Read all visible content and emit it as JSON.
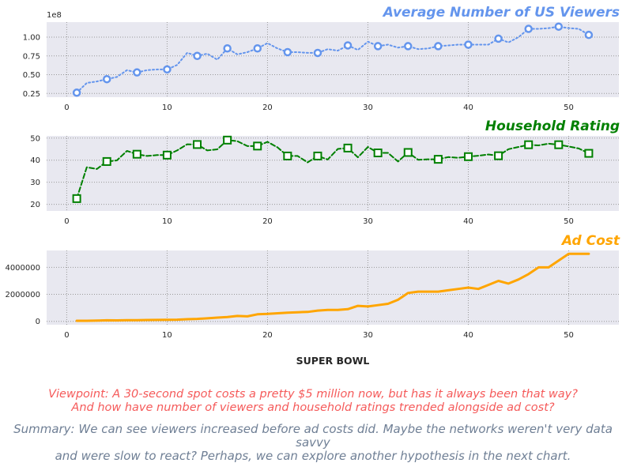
{
  "chart_data": [
    {
      "type": "line",
      "title": "Average Number of US Viewers",
      "color": "#6495ed",
      "linestyle": "dotted",
      "marker": "circle",
      "offset_label": "1e8",
      "x": [
        1,
        2,
        3,
        4,
        5,
        6,
        7,
        8,
        9,
        10,
        11,
        12,
        13,
        14,
        15,
        16,
        17,
        18,
        19,
        20,
        21,
        22,
        23,
        24,
        25,
        26,
        27,
        28,
        29,
        30,
        31,
        32,
        33,
        34,
        35,
        36,
        37,
        38,
        39,
        40,
        41,
        42,
        43,
        44,
        45,
        46,
        47,
        48,
        49,
        50,
        51,
        52
      ],
      "values": [
        0.26,
        0.39,
        0.41,
        0.44,
        0.47,
        0.56,
        0.53,
        0.56,
        0.57,
        0.57,
        0.63,
        0.79,
        0.75,
        0.78,
        0.7,
        0.85,
        0.77,
        0.8,
        0.85,
        0.92,
        0.85,
        0.8,
        0.8,
        0.79,
        0.79,
        0.84,
        0.82,
        0.89,
        0.83,
        0.94,
        0.88,
        0.9,
        0.86,
        0.88,
        0.84,
        0.85,
        0.88,
        0.89,
        0.9,
        0.9,
        0.9,
        0.9,
        0.98,
        0.93,
        1.0,
        1.11,
        1.11,
        1.12,
        1.14,
        1.12,
        1.11,
        1.03
      ],
      "marked_x": [
        1,
        4,
        7,
        10,
        13,
        16,
        19,
        22,
        25,
        28,
        31,
        34,
        37,
        40,
        43,
        46,
        49,
        52
      ],
      "xlim": [
        -2,
        55
      ],
      "ylim": [
        0.2,
        1.2
      ],
      "xticks": [
        0,
        10,
        20,
        30,
        40,
        50
      ],
      "yticks": [
        0.25,
        0.5,
        0.75,
        1.0
      ],
      "ytick_labels": [
        "0.25",
        "0.50",
        "0.75",
        "1.00"
      ]
    },
    {
      "type": "line",
      "title": "Household Rating",
      "color": "#008000",
      "linestyle": "dashed",
      "marker": "square",
      "x": [
        1,
        2,
        3,
        4,
        5,
        6,
        7,
        8,
        9,
        10,
        11,
        12,
        13,
        14,
        15,
        16,
        17,
        18,
        19,
        20,
        21,
        22,
        23,
        24,
        25,
        26,
        27,
        28,
        29,
        30,
        31,
        32,
        33,
        34,
        35,
        36,
        37,
        38,
        39,
        40,
        41,
        42,
        43,
        44,
        45,
        46,
        47,
        48,
        49,
        50,
        51,
        52
      ],
      "values": [
        22.6,
        36.8,
        36.0,
        39.4,
        39.9,
        44.2,
        42.7,
        41.9,
        42.3,
        42.3,
        44.4,
        47.2,
        47.1,
        44.4,
        44.9,
        49.1,
        48.6,
        46.4,
        46.4,
        48.3,
        45.8,
        41.9,
        41.9,
        39.0,
        41.9,
        40.3,
        45.1,
        45.5,
        41.3,
        46.0,
        43.3,
        43.3,
        39.4,
        43.5,
        40.2,
        40.4,
        40.4,
        41.4,
        41.1,
        41.6,
        42.0,
        42.6,
        42.0,
        45.0,
        46.0,
        47.0,
        46.7,
        47.5,
        47.0,
        46.2,
        45.3,
        43.1
      ],
      "marked_x": [
        1,
        4,
        7,
        10,
        13,
        16,
        19,
        22,
        25,
        28,
        31,
        34,
        37,
        40,
        43,
        46,
        49,
        52
      ],
      "xlim": [
        -2,
        55
      ],
      "ylim": [
        17,
        51
      ],
      "xticks": [
        0,
        10,
        20,
        30,
        40,
        50
      ],
      "yticks": [
        20,
        30,
        40,
        50
      ],
      "ytick_labels": [
        "20",
        "30",
        "40",
        "50"
      ]
    },
    {
      "type": "line",
      "title": "Ad Cost",
      "color": "#ffa500",
      "linestyle": "solid",
      "x": [
        1,
        2,
        3,
        4,
        5,
        6,
        7,
        8,
        9,
        10,
        11,
        12,
        13,
        14,
        15,
        16,
        17,
        18,
        19,
        20,
        21,
        22,
        23,
        24,
        25,
        26,
        27,
        28,
        29,
        30,
        31,
        32,
        33,
        34,
        35,
        36,
        37,
        38,
        39,
        40,
        41,
        42,
        43,
        44,
        45,
        46,
        47,
        48,
        49,
        50,
        51,
        52
      ],
      "values": [
        42500,
        42000,
        54000,
        78000,
        72000,
        86000,
        88000,
        103500,
        107000,
        110000,
        125000,
        162000,
        185000,
        222000,
        275000,
        324000,
        400000,
        368000,
        525000,
        550000,
        600000,
        645000,
        675500,
        700400,
        800000,
        850000,
        850000,
        900000,
        1150000,
        1100000,
        1200000,
        1300000,
        1600000,
        2100000,
        2200000,
        2200000,
        2200000,
        2300000,
        2400000,
        2500000,
        2400000,
        2700000,
        3000000,
        2800000,
        3100000,
        3500000,
        4000000,
        4000000,
        4500000,
        5000000,
        5000000,
        5000000
      ],
      "xlim": [
        -2,
        55
      ],
      "ylim": [
        -250000,
        5250000
      ],
      "xticks": [
        0,
        10,
        20,
        30,
        40,
        50
      ],
      "yticks": [
        0,
        2000000,
        4000000
      ],
      "ytick_labels": [
        "0",
        "2000000",
        "4000000"
      ]
    }
  ],
  "xlabel": "SUPER BOWL",
  "viewpoint": [
    "Viewpoint: A 30-second spot costs a pretty $5 million now, but has it always been that way?",
    "And how have number of viewers and household ratings trended alongside ad cost?"
  ],
  "summary": [
    "Summary: We can see viewers increased before ad costs did. Maybe the networks weren't very data savvy",
    "and were slow to react? Perhaps, we can explore another hypothesis in the next chart."
  ],
  "colors": {
    "axes_bg": "#e8e8f0",
    "grid": "#999999"
  }
}
